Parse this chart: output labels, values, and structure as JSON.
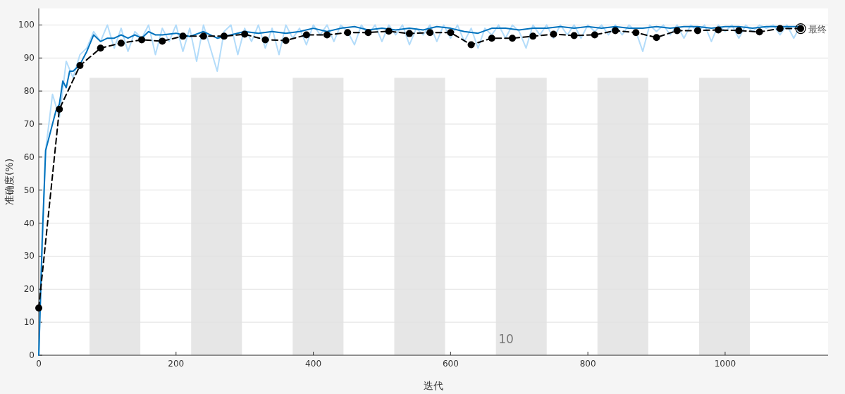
{
  "chart_data": {
    "type": "line",
    "xlabel": "迭代",
    "ylabel": "准确度(%)",
    "xlim": [
      0,
      1150
    ],
    "ylim": [
      0,
      105
    ],
    "xticks": [
      0,
      200,
      400,
      600,
      800,
      1000
    ],
    "yticks": [
      0,
      10,
      20,
      30,
      40,
      50,
      60,
      70,
      80,
      90,
      100
    ],
    "grid": "y",
    "bands": [
      {
        "axis": "x",
        "from": 74,
        "to": 148,
        "color": "#e6e6e6"
      },
      {
        "axis": "x",
        "from": 222,
        "to": 296,
        "color": "#e6e6e6"
      },
      {
        "axis": "x",
        "from": 370,
        "to": 444,
        "color": "#e6e6e6"
      },
      {
        "axis": "x",
        "from": 518,
        "to": 592,
        "color": "#e6e6e6"
      },
      {
        "axis": "x",
        "from": 666,
        "to": 740,
        "color": "#e6e6e6"
      },
      {
        "axis": "x",
        "from": 814,
        "to": 888,
        "color": "#e6e6e6"
      },
      {
        "axis": "x",
        "from": 962,
        "to": 1036,
        "color": "#e6e6e6"
      }
    ],
    "annotations": [
      "10",
      {
        "text": "最终",
        "x": 1110,
        "y": 98.9
      }
    ],
    "series": [
      {
        "color": "#b3dcfa",
        "marker": "none",
        "line_style": "solid",
        "x": [
          0,
          10,
          20,
          30,
          40,
          50,
          60,
          70,
          80,
          90,
          100,
          110,
          120,
          130,
          140,
          150,
          160,
          170,
          180,
          190,
          200,
          210,
          220,
          230,
          240,
          250,
          260,
          270,
          280,
          290,
          300,
          310,
          320,
          330,
          340,
          350,
          360,
          370,
          380,
          390,
          400,
          410,
          420,
          430,
          440,
          450,
          460,
          470,
          480,
          490,
          500,
          510,
          520,
          530,
          540,
          550,
          560,
          570,
          580,
          590,
          600,
          610,
          620,
          630,
          640,
          650,
          660,
          670,
          680,
          690,
          700,
          710,
          720,
          730,
          740,
          750,
          760,
          770,
          780,
          790,
          800,
          810,
          820,
          830,
          840,
          850,
          860,
          870,
          880,
          890,
          900,
          910,
          920,
          930,
          940,
          950,
          960,
          970,
          980,
          990,
          1000,
          1010,
          1020,
          1030,
          1040,
          1050,
          1060,
          1070,
          1080,
          1090,
          1100,
          1110
        ],
        "values": [
          0,
          62,
          79,
          72,
          89,
          84,
          91,
          93,
          98,
          95,
          100,
          93,
          99,
          92,
          98,
          96,
          100,
          91,
          99,
          95,
          100,
          92,
          99,
          89,
          100,
          93,
          86,
          98,
          100,
          91,
          99,
          95,
          100,
          93,
          99,
          91,
          100,
          96,
          99,
          94,
          100,
          97,
          100,
          95,
          100,
          98,
          94,
          100,
          97,
          100,
          95,
          100,
          97,
          100,
          94,
          99,
          97,
          100,
          95,
          100,
          96,
          100,
          95,
          99,
          93,
          99,
          97,
          100,
          96,
          100,
          98,
          93,
          100,
          97,
          100,
          96,
          100,
          97,
          100,
          96,
          100,
          98,
          100,
          97,
          100,
          97,
          100,
          98,
          92,
          100,
          98,
          100,
          97,
          100,
          96,
          100,
          98,
          100,
          95,
          100,
          98,
          100,
          96,
          100,
          98,
          100,
          99,
          100,
          97,
          100,
          96,
          100
        ]
      },
      {
        "color": "#0072bd",
        "marker": "none",
        "line_style": "solid",
        "x": [
          0,
          5,
          10,
          15,
          20,
          25,
          30,
          35,
          40,
          45,
          50,
          60,
          70,
          80,
          90,
          100,
          110,
          120,
          130,
          140,
          150,
          160,
          170,
          180,
          200,
          220,
          240,
          260,
          280,
          300,
          320,
          340,
          360,
          380,
          400,
          420,
          440,
          460,
          480,
          500,
          520,
          540,
          560,
          580,
          600,
          620,
          640,
          660,
          680,
          700,
          720,
          740,
          760,
          780,
          800,
          820,
          840,
          860,
          880,
          900,
          920,
          940,
          960,
          980,
          1000,
          1020,
          1040,
          1060,
          1080,
          1110
        ],
        "values": [
          0,
          35,
          62,
          66,
          70,
          74,
          76,
          83,
          81,
          86,
          86,
          88,
          92,
          97,
          95,
          96,
          96,
          97,
          96,
          97,
          96,
          98,
          97,
          97,
          97.5,
          96.5,
          98,
          96,
          97,
          98,
          97.5,
          98,
          97.5,
          98,
          99,
          98,
          99,
          99.5,
          98.5,
          99,
          98.5,
          99,
          98.5,
          99.5,
          99,
          98,
          97.5,
          99,
          99,
          98.5,
          99,
          99,
          99.5,
          99,
          99.5,
          99,
          99.5,
          99,
          99,
          99.5,
          99,
          99.5,
          99.5,
          99,
          99.5,
          99.5,
          99,
          99.5,
          99.5,
          99.5
        ]
      },
      {
        "color": "#000000",
        "marker": "circle",
        "line_style": "dashed",
        "x": [
          0,
          30,
          60,
          90,
          120,
          150,
          180,
          210,
          240,
          270,
          300,
          330,
          360,
          390,
          420,
          450,
          480,
          510,
          540,
          570,
          600,
          630,
          660,
          690,
          720,
          750,
          780,
          810,
          840,
          870,
          900,
          930,
          960,
          990,
          1020,
          1050,
          1080,
          1110
        ],
        "values": [
          14.3,
          74.5,
          87.7,
          93,
          94.5,
          95.5,
          95.1,
          96.6,
          96.6,
          96.6,
          97.2,
          95.5,
          95.3,
          97,
          97,
          97.7,
          97.7,
          98.1,
          97.4,
          97.7,
          97.7,
          94,
          96,
          96,
          96.6,
          97.2,
          96.8,
          97,
          98.3,
          97.7,
          96.2,
          98.3,
          98.3,
          98.5,
          98.3,
          97.9,
          98.9,
          98.9
        ]
      }
    ]
  }
}
